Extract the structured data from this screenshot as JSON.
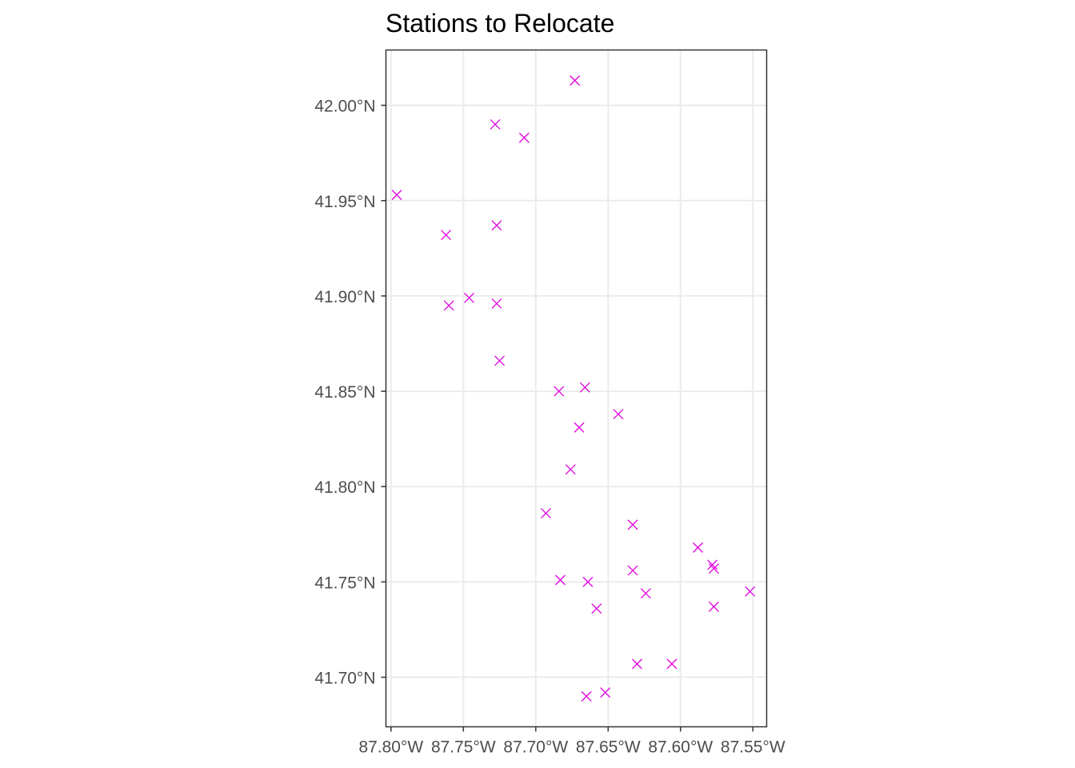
{
  "chart_data": {
    "type": "scatter",
    "title": "Stations to Relocate",
    "xlabel": "",
    "ylabel": "",
    "xlim": [
      -87.8035,
      -87.5405
    ],
    "ylim": [
      41.674,
      42.029
    ],
    "grid": true,
    "legend": "none",
    "marker": "x",
    "marker_color": "#e000e0",
    "x_ticks": [
      {
        "value": -87.8,
        "label": "87.80°W"
      },
      {
        "value": -87.75,
        "label": "87.75°W"
      },
      {
        "value": -87.7,
        "label": "87.70°W"
      },
      {
        "value": -87.65,
        "label": "87.65°W"
      },
      {
        "value": -87.6,
        "label": "87.60°W"
      },
      {
        "value": -87.55,
        "label": "87.55°W"
      }
    ],
    "y_ticks": [
      {
        "value": 41.7,
        "label": "41.70°N"
      },
      {
        "value": 41.75,
        "label": "41.75°N"
      },
      {
        "value": 41.8,
        "label": "41.80°N"
      },
      {
        "value": 41.85,
        "label": "41.85°N"
      },
      {
        "value": 41.9,
        "label": "41.90°N"
      },
      {
        "value": 41.95,
        "label": "41.95°N"
      },
      {
        "value": 42.0,
        "label": "42.00°N"
      }
    ],
    "points": [
      {
        "x": -87.673,
        "y": 42.013
      },
      {
        "x": -87.728,
        "y": 41.99
      },
      {
        "x": -87.708,
        "y": 41.983
      },
      {
        "x": -87.796,
        "y": 41.953
      },
      {
        "x": -87.762,
        "y": 41.932
      },
      {
        "x": -87.727,
        "y": 41.937
      },
      {
        "x": -87.746,
        "y": 41.899
      },
      {
        "x": -87.76,
        "y": 41.895
      },
      {
        "x": -87.727,
        "y": 41.896
      },
      {
        "x": -87.725,
        "y": 41.866
      },
      {
        "x": -87.684,
        "y": 41.85
      },
      {
        "x": -87.666,
        "y": 41.852
      },
      {
        "x": -87.643,
        "y": 41.838
      },
      {
        "x": -87.67,
        "y": 41.831
      },
      {
        "x": -87.676,
        "y": 41.809
      },
      {
        "x": -87.693,
        "y": 41.786
      },
      {
        "x": -87.633,
        "y": 41.78
      },
      {
        "x": -87.588,
        "y": 41.768
      },
      {
        "x": -87.578,
        "y": 41.759
      },
      {
        "x": -87.577,
        "y": 41.757
      },
      {
        "x": -87.633,
        "y": 41.756
      },
      {
        "x": -87.683,
        "y": 41.751
      },
      {
        "x": -87.664,
        "y": 41.75
      },
      {
        "x": -87.624,
        "y": 41.744
      },
      {
        "x": -87.552,
        "y": 41.745
      },
      {
        "x": -87.577,
        "y": 41.737
      },
      {
        "x": -87.658,
        "y": 41.736
      },
      {
        "x": -87.63,
        "y": 41.707
      },
      {
        "x": -87.606,
        "y": 41.707
      },
      {
        "x": -87.652,
        "y": 41.692
      },
      {
        "x": -87.665,
        "y": 41.69
      }
    ]
  }
}
